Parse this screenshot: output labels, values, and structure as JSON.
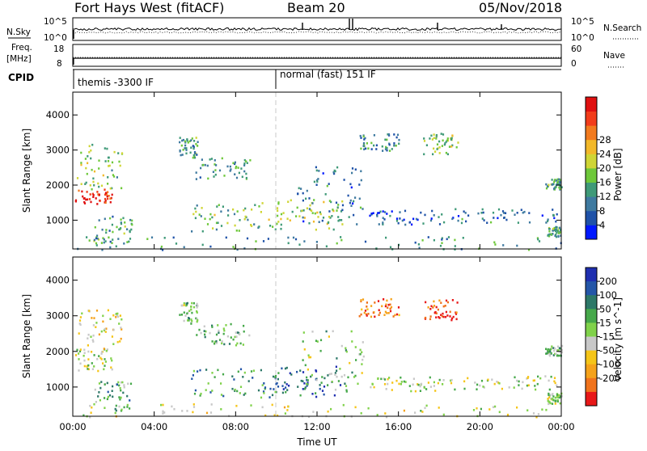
{
  "header": {
    "station": "Fort Hays West (fitACF)",
    "beam": "Beam 20",
    "date": "05/Nov/2018"
  },
  "top_panels": {
    "left_label_sky": "N.Sky",
    "left_tick_sky_top": "10^5",
    "left_tick_sky_bottom": "10^0",
    "right_tick_sky_top": "10^5",
    "right_tick_sky_bottom": "10^0",
    "right_label_search": "N.Search",
    "left_label_freq": "Freq.",
    "left_label_freq_unit": "[MHz]",
    "left_tick_freq_top": "18",
    "left_tick_freq_bottom": "8",
    "right_tick_nave_top": "60",
    "right_tick_nave_bottom": "0",
    "right_label_nave": "Nave",
    "cpid_label": "CPID",
    "cpid_segment_1": "themis -3300 IF",
    "cpid_segment_2": "normal (fast) 151 IF"
  },
  "chart_data": [
    {
      "type": "heatmap",
      "name": "power",
      "ylabel": "Slant Range [km]",
      "xlabel": "Time UT",
      "x_ticks": [
        "00:00",
        "04:00",
        "08:00",
        "12:00",
        "16:00",
        "20:00",
        "00:00"
      ],
      "x_range_hours": [
        0,
        24
      ],
      "y_ticks": [
        1000,
        2000,
        3000,
        4000
      ],
      "y_range_km": [
        180,
        4650
      ],
      "colorbar": {
        "label": "Power [dB]",
        "ticks": [
          4,
          8,
          12,
          16,
          20,
          24,
          28
        ],
        "colors": [
          "#0018ff",
          "#1f52a8",
          "#3f7aa0",
          "#3f9a78",
          "#6ec83a",
          "#cfd535",
          "#f2b829",
          "#f27a1e",
          "#f23c1a",
          "#e01010"
        ]
      },
      "echo_regions": [
        {
          "t": [
            0.1,
            1.9
          ],
          "r": [
            1450,
            1900
          ],
          "level": 0.9
        },
        {
          "t": [
            0.1,
            2.4
          ],
          "r": [
            1900,
            3200
          ],
          "level": 0.45
        },
        {
          "t": [
            1.0,
            2.9
          ],
          "r": [
            350,
            1200
          ],
          "level": 0.35
        },
        {
          "t": [
            5.2,
            6.1
          ],
          "r": [
            2800,
            3400
          ],
          "level": 0.35
        },
        {
          "t": [
            6.0,
            8.7
          ],
          "r": [
            2200,
            2800
          ],
          "level": 0.3
        },
        {
          "t": [
            5.8,
            10.3
          ],
          "r": [
            700,
            1550
          ],
          "level": 0.45
        },
        {
          "t": [
            9.8,
            13.3
          ],
          "r": [
            750,
            1600
          ],
          "level": 0.5
        },
        {
          "t": [
            11.0,
            14.3
          ],
          "r": [
            900,
            2600
          ],
          "level": 0.25
        },
        {
          "t": [
            14.5,
            18.2
          ],
          "r": [
            900,
            1300
          ],
          "level": 0.2
        },
        {
          "t": [
            17.2,
            18.9
          ],
          "r": [
            2900,
            3500
          ],
          "level": 0.45
        },
        {
          "t": [
            14.0,
            16.0
          ],
          "r": [
            3000,
            3500
          ],
          "level": 0.3
        },
        {
          "t": [
            18.5,
            23.9
          ],
          "r": [
            950,
            1350
          ],
          "level": 0.25
        },
        {
          "t": [
            23.2,
            24.0
          ],
          "r": [
            1900,
            2200
          ],
          "level": 0.35
        },
        {
          "t": [
            23.3,
            24.0
          ],
          "r": [
            550,
            850
          ],
          "level": 0.35
        },
        {
          "t": [
            0.0,
            24.0
          ],
          "r": [
            180,
            550
          ],
          "level": 0.3
        }
      ]
    },
    {
      "type": "heatmap",
      "name": "velocity",
      "ylabel": "Slant Range [km]",
      "xlabel": "Time UT",
      "x_ticks": [
        "00:00",
        "04:00",
        "08:00",
        "12:00",
        "16:00",
        "20:00",
        "00:00"
      ],
      "x_range_hours": [
        0,
        24
      ],
      "y_ticks": [
        1000,
        2000,
        3000,
        4000
      ],
      "y_range_km": [
        180,
        4650
      ],
      "colorbar": {
        "label": "Velocity [m s^-1]",
        "ticks": [
          "200",
          "100",
          "50",
          "15",
          "-15",
          "-50",
          "-100",
          "-200"
        ],
        "colors": [
          "#1f2fb0",
          "#2456a8",
          "#2d7868",
          "#46a84a",
          "#80d24a",
          "#c8c8c8",
          "#f5c518",
          "#f5a21a",
          "#f0731c",
          "#e81818"
        ]
      },
      "echo_regions": [
        {
          "t": [
            0.1,
            1.9
          ],
          "r": [
            1450,
            2100
          ],
          "level": 0.5
        },
        {
          "t": [
            0.1,
            2.4
          ],
          "r": [
            2100,
            3200
          ],
          "level": 0.6
        },
        {
          "t": [
            1.0,
            2.9
          ],
          "r": [
            350,
            1200
          ],
          "level": 0.35
        },
        {
          "t": [
            5.2,
            6.1
          ],
          "r": [
            2800,
            3400
          ],
          "level": 0.45
        },
        {
          "t": [
            6.0,
            8.7
          ],
          "r": [
            2200,
            2800
          ],
          "level": 0.4
        },
        {
          "t": [
            5.8,
            10.3
          ],
          "r": [
            700,
            1550
          ],
          "level": 0.3
        },
        {
          "t": [
            9.8,
            13.3
          ],
          "r": [
            750,
            1600
          ],
          "level": 0.15
        },
        {
          "t": [
            11.0,
            14.3
          ],
          "r": [
            900,
            2600
          ],
          "level": 0.45
        },
        {
          "t": [
            14.5,
            18.2
          ],
          "r": [
            900,
            1300
          ],
          "level": 0.5
        },
        {
          "t": [
            17.2,
            18.9
          ],
          "r": [
            2900,
            3500
          ],
          "level": 0.92
        },
        {
          "t": [
            14.0,
            16.0
          ],
          "r": [
            3000,
            3500
          ],
          "level": 0.85
        },
        {
          "t": [
            18.5,
            23.9
          ],
          "r": [
            950,
            1350
          ],
          "level": 0.5
        },
        {
          "t": [
            23.2,
            24.0
          ],
          "r": [
            1900,
            2200
          ],
          "level": 0.4
        },
        {
          "t": [
            23.3,
            24.0
          ],
          "r": [
            550,
            850
          ],
          "level": 0.5
        },
        {
          "t": [
            0.0,
            24.0
          ],
          "r": [
            180,
            550
          ],
          "level": 0.55
        }
      ]
    }
  ]
}
